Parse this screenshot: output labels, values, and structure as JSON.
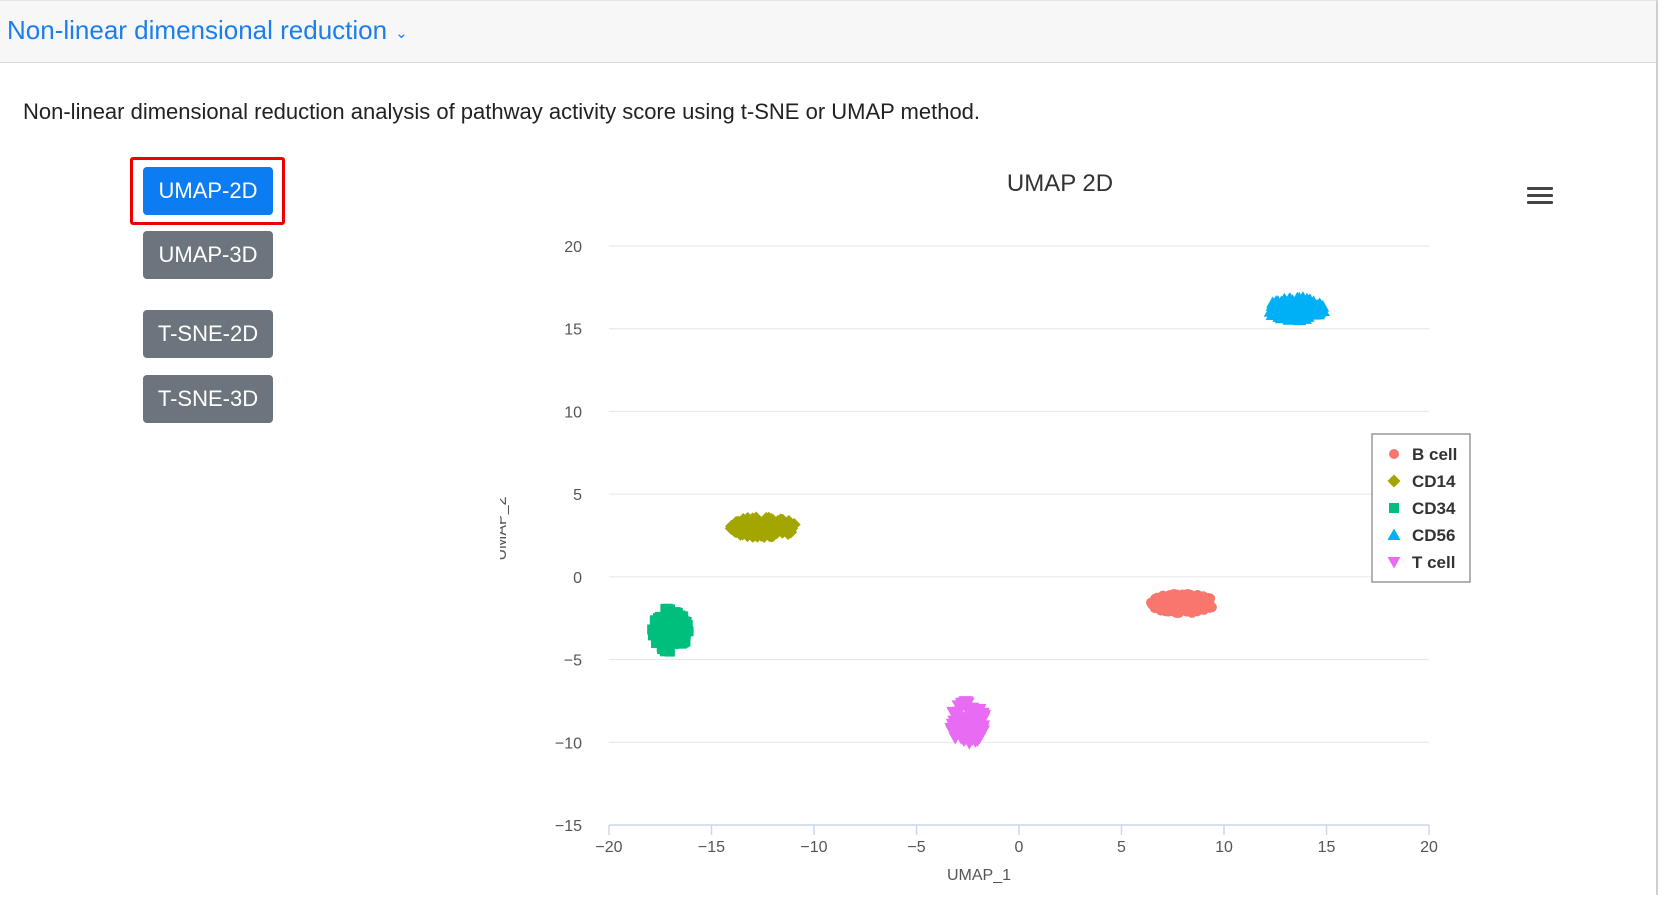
{
  "header": {
    "title": "Non-linear dimensional reduction",
    "chevron_icon": "chevron-down-icon"
  },
  "description": "Non-linear dimensional reduction analysis of pathway activity score using t-SNE or UMAP method.",
  "buttons": [
    {
      "label": "UMAP-2D",
      "active": true
    },
    {
      "label": "UMAP-3D",
      "active": false
    },
    {
      "label": "T-SNE-2D",
      "active": false
    },
    {
      "label": "T-SNE-3D",
      "active": false
    }
  ],
  "colors": {
    "accent": "#0b7cf2",
    "secondary": "#6c757d",
    "highlight": "#e00000"
  },
  "chart_data": {
    "type": "scatter",
    "title": "UMAP 2D",
    "xlabel": "UMAP_1",
    "ylabel": "UMAP_2",
    "xlim": [
      -20,
      20
    ],
    "ylim": [
      -15,
      20
    ],
    "xticks": [
      -20,
      -15,
      -10,
      -5,
      0,
      5,
      10,
      15,
      20
    ],
    "yticks": [
      -15,
      -10,
      -5,
      0,
      5,
      10,
      15,
      20
    ],
    "grid": true,
    "legend_position": "right",
    "series": [
      {
        "name": "B cell",
        "color": "#f8766d",
        "marker": "circle",
        "center": [
          8.0,
          -1.6
        ],
        "spread": [
          1.6,
          0.6
        ],
        "count": 140
      },
      {
        "name": "CD14",
        "color": "#a3a500",
        "marker": "diamond",
        "center": [
          -12.5,
          3.0
        ],
        "spread": [
          1.6,
          0.6
        ],
        "count": 140
      },
      {
        "name": "CD34",
        "color": "#00bf7d",
        "marker": "square",
        "center": [
          -17.0,
          -3.2
        ],
        "spread": [
          0.9,
          1.4
        ],
        "count": 140
      },
      {
        "name": "CD56",
        "color": "#00b0f6",
        "marker": "triangle",
        "center": [
          13.5,
          16.2
        ],
        "spread": [
          1.4,
          0.7
        ],
        "count": 140
      },
      {
        "name": "T cell",
        "color": "#e76bf3",
        "marker": "triangle-down",
        "center": [
          -2.5,
          -8.8
        ],
        "spread": [
          0.9,
          1.3
        ],
        "count": 140
      }
    ]
  },
  "chart_menu_icon": "hamburger-menu-icon"
}
